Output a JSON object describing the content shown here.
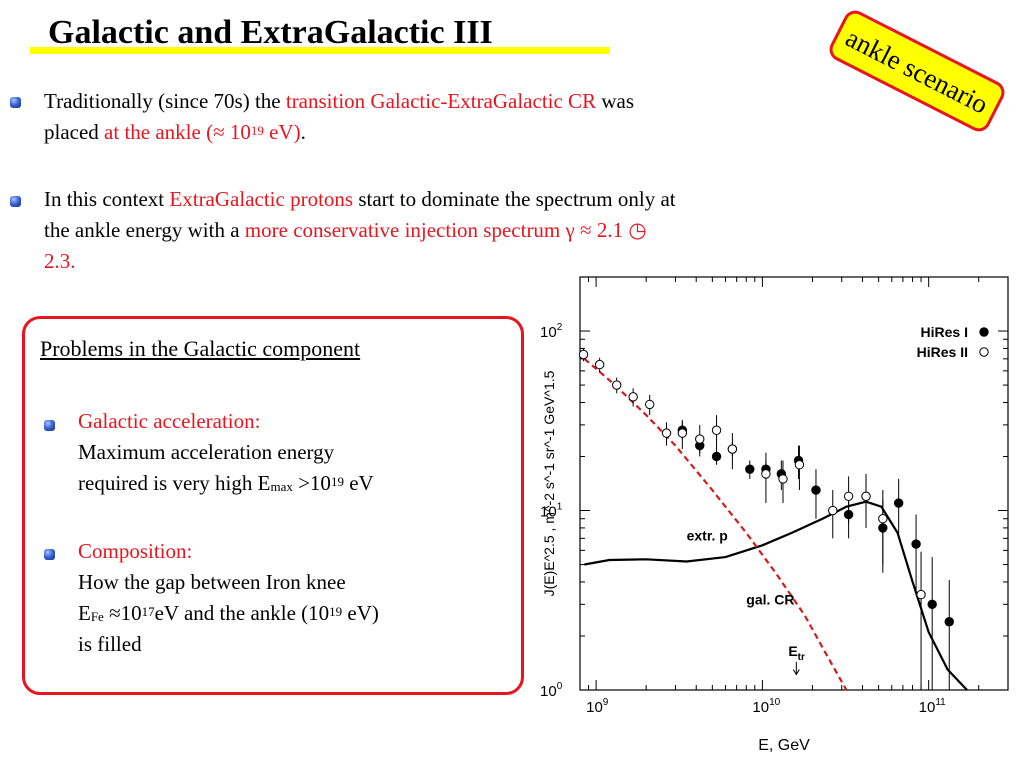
{
  "slide": {
    "title": "Galactic and ExtraGalactic III",
    "badge": "ankle scenario",
    "bullet1": {
      "t1": "Traditionally (since 70s) the ",
      "t2": "transition Galactic-ExtraGalactic CR",
      "t3": " was",
      "t4": "placed ",
      "t5": "at the ankle (≈ 10",
      "t6": "19",
      "t7": " eV)",
      "t8": "."
    },
    "bullet2": {
      "t1": "In this context ",
      "t2": "ExtraGalactic protons",
      "t3": " start to dominate the spectrum only at",
      "t4": "the ankle energy with a ",
      "t5": "more conservative injection spectrum",
      "t6": "  γ ≈ 2.1 ",
      "t7": "◷",
      "t8": "2.3."
    },
    "box": {
      "title": "Problems in the Galactic component",
      "item1": {
        "head": "Galactic acceleration:",
        "l1": "Maximum acceleration energy",
        "l2a": "required is very high E",
        "l2sub": "max",
        "l2b": " >10",
        "l2sup": "19",
        "l2c": " eV"
      },
      "item2": {
        "head": "Composition:",
        "l1": "How the gap between Iron knee",
        "l2a": "E",
        "l2sub": "Fe",
        "l2b": " ≈10",
        "l2sup": "17",
        "l2c": "eV and the ankle (10",
        "l2sup2": "19",
        "l2d": " eV)",
        "l3": "is filled"
      }
    }
  },
  "chart_data": {
    "type": "scatter",
    "xlabel": "E, GeV",
    "ylabel": "J(E)E^2.5 , m^-2 s^-1 sr^-1 GeV^1.5",
    "x_scale": "log",
    "y_scale": "log",
    "xlim": [
      800000000,
      300000000000
    ],
    "ylim": [
      1,
      200
    ],
    "x_ticks": [
      {
        "value": 1000000000,
        "base": "10",
        "exp": "9"
      },
      {
        "value": 10000000000,
        "base": "10",
        "exp": "10"
      },
      {
        "value": 100000000000,
        "base": "10",
        "exp": "11"
      }
    ],
    "y_ticks": [
      {
        "value": 1,
        "base": "10",
        "exp": "0"
      },
      {
        "value": 10,
        "base": "10",
        "exp": "1"
      },
      {
        "value": 100,
        "base": "10",
        "exp": "2"
      }
    ],
    "legend": {
      "position": "top-right"
    },
    "series": [
      {
        "name": "HiRes I",
        "marker": "filled-circle",
        "points": [
          [
            3300000000.0,
            28,
            3
          ],
          [
            4200000000.0,
            23,
            2
          ],
          [
            5300000000.0,
            20,
            2
          ],
          [
            6600000000.0,
            22,
            2
          ],
          [
            8400000000.0,
            17,
            2
          ],
          [
            10500000000.0,
            17,
            2
          ],
          [
            13000000000.0,
            16,
            3
          ],
          [
            16500000000.0,
            19,
            4
          ],
          [
            21000000000.0,
            13,
            4
          ],
          [
            33000000000.0,
            9.5,
            2.5
          ],
          [
            42000000000.0,
            12,
            3
          ],
          [
            53000000000.0,
            8,
            3.5
          ],
          [
            66000000000.0,
            11,
            4
          ],
          [
            84000000000.0,
            6.5,
            3
          ],
          [
            105000000000.0,
            3,
            2.5
          ],
          [
            133000000000.0,
            2.4,
            1.7
          ]
        ]
      },
      {
        "name": "HiRes II",
        "marker": "open-circle",
        "points": [
          [
            840000000.0,
            74,
            6
          ],
          [
            1050000000.0,
            65,
            6
          ],
          [
            1330000000.0,
            50,
            5
          ],
          [
            1670000000.0,
            43,
            5
          ],
          [
            2100000000.0,
            39,
            5
          ],
          [
            2650000000.0,
            27,
            4
          ],
          [
            3300000000.0,
            27,
            5
          ],
          [
            4200000000.0,
            25,
            5
          ],
          [
            5300000000.0,
            28,
            6
          ],
          [
            6600000000.0,
            22,
            5
          ],
          [
            10500000000.0,
            16,
            5
          ],
          [
            13300000000.0,
            15,
            4
          ],
          [
            16700000000.0,
            18,
            5
          ],
          [
            26500000000.0,
            10,
            3
          ],
          [
            33000000000.0,
            12,
            3.5
          ],
          [
            42000000000.0,
            12,
            4
          ],
          [
            53000000000.0,
            9,
            4
          ],
          [
            90000000000.0,
            3.4,
            2.5
          ]
        ]
      }
    ],
    "curves": [
      {
        "name": "extr. p",
        "style": "solid-black",
        "points": [
          [
            850000000.0,
            5
          ],
          [
            1200000000.0,
            5.3
          ],
          [
            2000000000.0,
            5.35
          ],
          [
            3500000000.0,
            5.2
          ],
          [
            6000000000.0,
            5.5
          ],
          [
            10000000000.0,
            6.4
          ],
          [
            15000000000.0,
            7.5
          ],
          [
            23000000000.0,
            9
          ],
          [
            32000000000.0,
            10.5
          ],
          [
            42000000000.0,
            11.2
          ],
          [
            52000000000.0,
            10.5
          ],
          [
            65000000000.0,
            7.5
          ],
          [
            80000000000.0,
            4
          ],
          [
            100000000000.0,
            2.1
          ],
          [
            130000000000.0,
            1.3
          ],
          [
            170000000000.0,
            1
          ]
        ]
      },
      {
        "name": "gal. CR",
        "style": "dashed-red",
        "points": [
          [
            850000000.0,
            70
          ],
          [
            1300000000.0,
            50
          ],
          [
            2000000000.0,
            34
          ],
          [
            3000000000.0,
            23
          ],
          [
            5000000000.0,
            13
          ],
          [
            8000000000.0,
            7.5
          ],
          [
            12000000000.0,
            4.5
          ],
          [
            18000000000.0,
            2.6
          ],
          [
            25000000000.0,
            1.5
          ],
          [
            32000000000.0,
            1
          ]
        ]
      }
    ],
    "annotations": [
      {
        "text": "extr. p",
        "x": 3500000000.0,
        "y": 6.8
      },
      {
        "text": "gal. CR",
        "x": 8000000000.0,
        "y": 3
      },
      {
        "label": "E",
        "sub": "tr",
        "x": 16000000000.0,
        "y": 1.55,
        "arrow_to_y": 1.22
      }
    ]
  }
}
